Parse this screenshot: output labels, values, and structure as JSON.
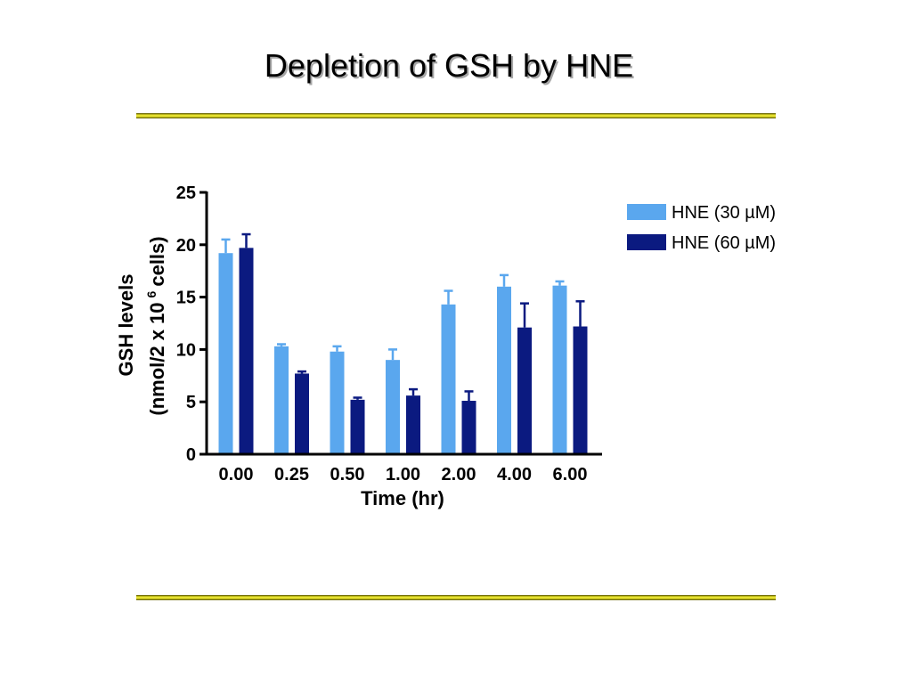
{
  "theme": {
    "background": "#ffffff",
    "rule_dark": "#55530c",
    "rule_mid": "#c8c21c",
    "rule_light": "#fbf73c",
    "title_shadow": "#a6a6a6"
  },
  "chart_data": {
    "type": "bar",
    "title": "Depletion of GSH by HNE",
    "xlabel": "Time (hr)",
    "ylabel": {
      "line1": "GSH levels",
      "line2_prefix": "(nmol/2 x 10",
      "line2_superscript": "6",
      "line2_suffix": "cells)"
    },
    "categories": [
      "0.00",
      "0.25",
      "0.50",
      "1.00",
      "2.00",
      "4.00",
      "6.00"
    ],
    "ylim": [
      0,
      25
    ],
    "yticks": [
      0,
      5,
      10,
      15,
      20,
      25
    ],
    "grid": false,
    "legend": "right",
    "error_bars": true,
    "series": [
      {
        "name": "HNE (30 µM)",
        "color": "#5aa7ee",
        "values": [
          19.2,
          10.3,
          9.8,
          9.0,
          14.3,
          16.0,
          16.1
        ],
        "errors": [
          1.3,
          0.2,
          0.5,
          1.0,
          1.3,
          1.1,
          0.4
        ]
      },
      {
        "name": "HNE (60 µM)",
        "color": "#0b1a80",
        "values": [
          19.7,
          7.7,
          5.2,
          5.6,
          5.1,
          12.1,
          12.2
        ],
        "errors": [
          1.3,
          0.2,
          0.2,
          0.6,
          0.9,
          2.3,
          2.4
        ]
      }
    ]
  }
}
